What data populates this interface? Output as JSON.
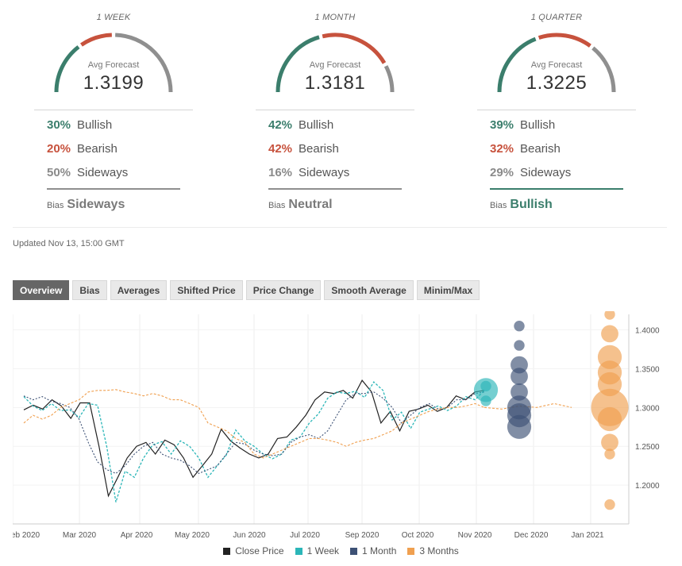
{
  "gauges": [
    {
      "title": "1 WEEK",
      "subtitle": "Avg Forecast",
      "value": "1.3199",
      "bullish_pct": "30%",
      "bullish_label": "Bullish",
      "bearish_pct": "20%",
      "bearish_label": "Bearish",
      "sideways_pct": "50%",
      "sideways_label": "Sideways",
      "bias_label": "Bias",
      "bias": "Sideways",
      "split": [
        0.3,
        0.2,
        0.5
      ]
    },
    {
      "title": "1 MONTH",
      "subtitle": "Avg Forecast",
      "value": "1.3181",
      "bullish_pct": "42%",
      "bullish_label": "Bullish",
      "bearish_pct": "42%",
      "bearish_label": "Bearish",
      "sideways_pct": "16%",
      "sideways_label": "Sideways",
      "bias_label": "Bias",
      "bias": "Neutral",
      "split": [
        0.42,
        0.42,
        0.16
      ]
    },
    {
      "title": "1 QUARTER",
      "subtitle": "Avg Forecast",
      "value": "1.3225",
      "bullish_pct": "39%",
      "bullish_label": "Bullish",
      "bearish_pct": "32%",
      "bearish_label": "Bearish",
      "sideways_pct": "29%",
      "sideways_label": "Sideways",
      "bias_label": "Bias",
      "bias": "Bullish",
      "split": [
        0.39,
        0.32,
        0.29
      ]
    }
  ],
  "updated": "Updated Nov 13, 15:00 GMT",
  "tabs": [
    "Overview",
    "Bias",
    "Averages",
    "Shifted Price",
    "Price Change",
    "Smooth Average",
    "Minim/Max"
  ],
  "active_tab": "Overview",
  "colors": {
    "bullish": "#3b7e6c",
    "bearish": "#c7523d",
    "sideways": "#8f8f8f",
    "close": "#222222",
    "week": "#2bb6b8",
    "month": "#3d5175",
    "quarter": "#f0a050"
  },
  "chart_data": {
    "type": "line",
    "x_tick_labels": [
      "eb 2020",
      "Mar 2020",
      "Apr 2020",
      "May 2020",
      "Jun 2020",
      "Jul 2020",
      "Sep 2020",
      "Oct 2020",
      "Nov 2020",
      "Dec 2020",
      "Jan 2021"
    ],
    "y_ticks": [
      "1.4000",
      "1.3500",
      "1.3000",
      "1.2500",
      "1.2000"
    ],
    "ylim": [
      1.15,
      1.42
    ],
    "grid": true,
    "legend_position": "bottom",
    "series": [
      {
        "name": "Close Price",
        "values": [
          1.297,
          1.303,
          1.298,
          1.31,
          1.302,
          1.286,
          1.306,
          1.306,
          1.25,
          1.186,
          1.21,
          1.235,
          1.25,
          1.255,
          1.24,
          1.258,
          1.252,
          1.235,
          1.21,
          1.225,
          1.24,
          1.272,
          1.257,
          1.248,
          1.24,
          1.235,
          1.24,
          1.26,
          1.262,
          1.275,
          1.29,
          1.31,
          1.32,
          1.318,
          1.322,
          1.312,
          1.335,
          1.32,
          1.28,
          1.295,
          1.27,
          1.295,
          1.298,
          1.303,
          1.295,
          1.3,
          1.315,
          1.31,
          1.32,
          1.322
        ]
      },
      {
        "name": "1 Week",
        "values": [
          1.314,
          1.302,
          1.296,
          1.305,
          1.296,
          1.297,
          1.287,
          1.305,
          1.303,
          1.25,
          1.178,
          1.218,
          1.21,
          1.235,
          1.252,
          1.256,
          1.24,
          1.257,
          1.25,
          1.235,
          1.21,
          1.225,
          1.239,
          1.271,
          1.257,
          1.25,
          1.24,
          1.234,
          1.24,
          1.258,
          1.262,
          1.28,
          1.292,
          1.312,
          1.32,
          1.318,
          1.321,
          1.313,
          1.333,
          1.322,
          1.284,
          1.294,
          1.273,
          1.294,
          1.298,
          1.302,
          1.296,
          1.302,
          1.314,
          1.31,
          1.322
        ]
      },
      {
        "name": "1 Month",
        "values": [
          1.315,
          1.31,
          1.314,
          1.308,
          1.305,
          1.3,
          1.285,
          1.255,
          1.23,
          1.22,
          1.215,
          1.225,
          1.24,
          1.25,
          1.255,
          1.24,
          1.235,
          1.232,
          1.225,
          1.215,
          1.22,
          1.225,
          1.24,
          1.255,
          1.253,
          1.245,
          1.24,
          1.238,
          1.24,
          1.255,
          1.262,
          1.265,
          1.26,
          1.27,
          1.29,
          1.31,
          1.318,
          1.318,
          1.32,
          1.312,
          1.3,
          1.28,
          1.29,
          1.3,
          1.305,
          1.298,
          1.3,
          1.31,
          1.31,
          1.318,
          1.32
        ]
      },
      {
        "name": "3 Months",
        "values": [
          1.28,
          1.29,
          1.285,
          1.29,
          1.3,
          1.305,
          1.31,
          1.32,
          1.322,
          1.322,
          1.323,
          1.32,
          1.318,
          1.315,
          1.318,
          1.315,
          1.31,
          1.31,
          1.305,
          1.3,
          1.28,
          1.275,
          1.27,
          1.26,
          1.255,
          1.24,
          1.235,
          1.24,
          1.245,
          1.25,
          1.255,
          1.26,
          1.26,
          1.258,
          1.255,
          1.25,
          1.255,
          1.258,
          1.26,
          1.265,
          1.27,
          1.28,
          1.285,
          1.29,
          1.295,
          1.298,
          1.3,
          1.3,
          1.302,
          1.305,
          1.3
        ]
      }
    ],
    "forecast_bubbles": [
      {
        "series": "1 Week",
        "points": [
          {
            "value": 1.3225,
            "weight": 3
          },
          {
            "value": 1.3275,
            "weight": 1
          },
          {
            "value": 1.3085,
            "weight": 1
          }
        ]
      },
      {
        "series": "1 Month",
        "points": [
          {
            "value": 1.405,
            "weight": 1
          },
          {
            "value": 1.38,
            "weight": 1
          },
          {
            "value": 1.355,
            "weight": 2
          },
          {
            "value": 1.34,
            "weight": 2
          },
          {
            "value": 1.32,
            "weight": 2
          },
          {
            "value": 1.3,
            "weight": 3
          },
          {
            "value": 1.29,
            "weight": 3
          },
          {
            "value": 1.275,
            "weight": 3
          }
        ]
      },
      {
        "series": "3 Months",
        "points": [
          {
            "value": 1.42,
            "weight": 1
          },
          {
            "value": 1.395,
            "weight": 2
          },
          {
            "value": 1.365,
            "weight": 3
          },
          {
            "value": 1.345,
            "weight": 3
          },
          {
            "value": 1.33,
            "weight": 3
          },
          {
            "value": 1.3,
            "weight": 5
          },
          {
            "value": 1.285,
            "weight": 3
          },
          {
            "value": 1.255,
            "weight": 2
          },
          {
            "value": 1.24,
            "weight": 1
          },
          {
            "value": 1.175,
            "weight": 1
          }
        ]
      }
    ]
  }
}
